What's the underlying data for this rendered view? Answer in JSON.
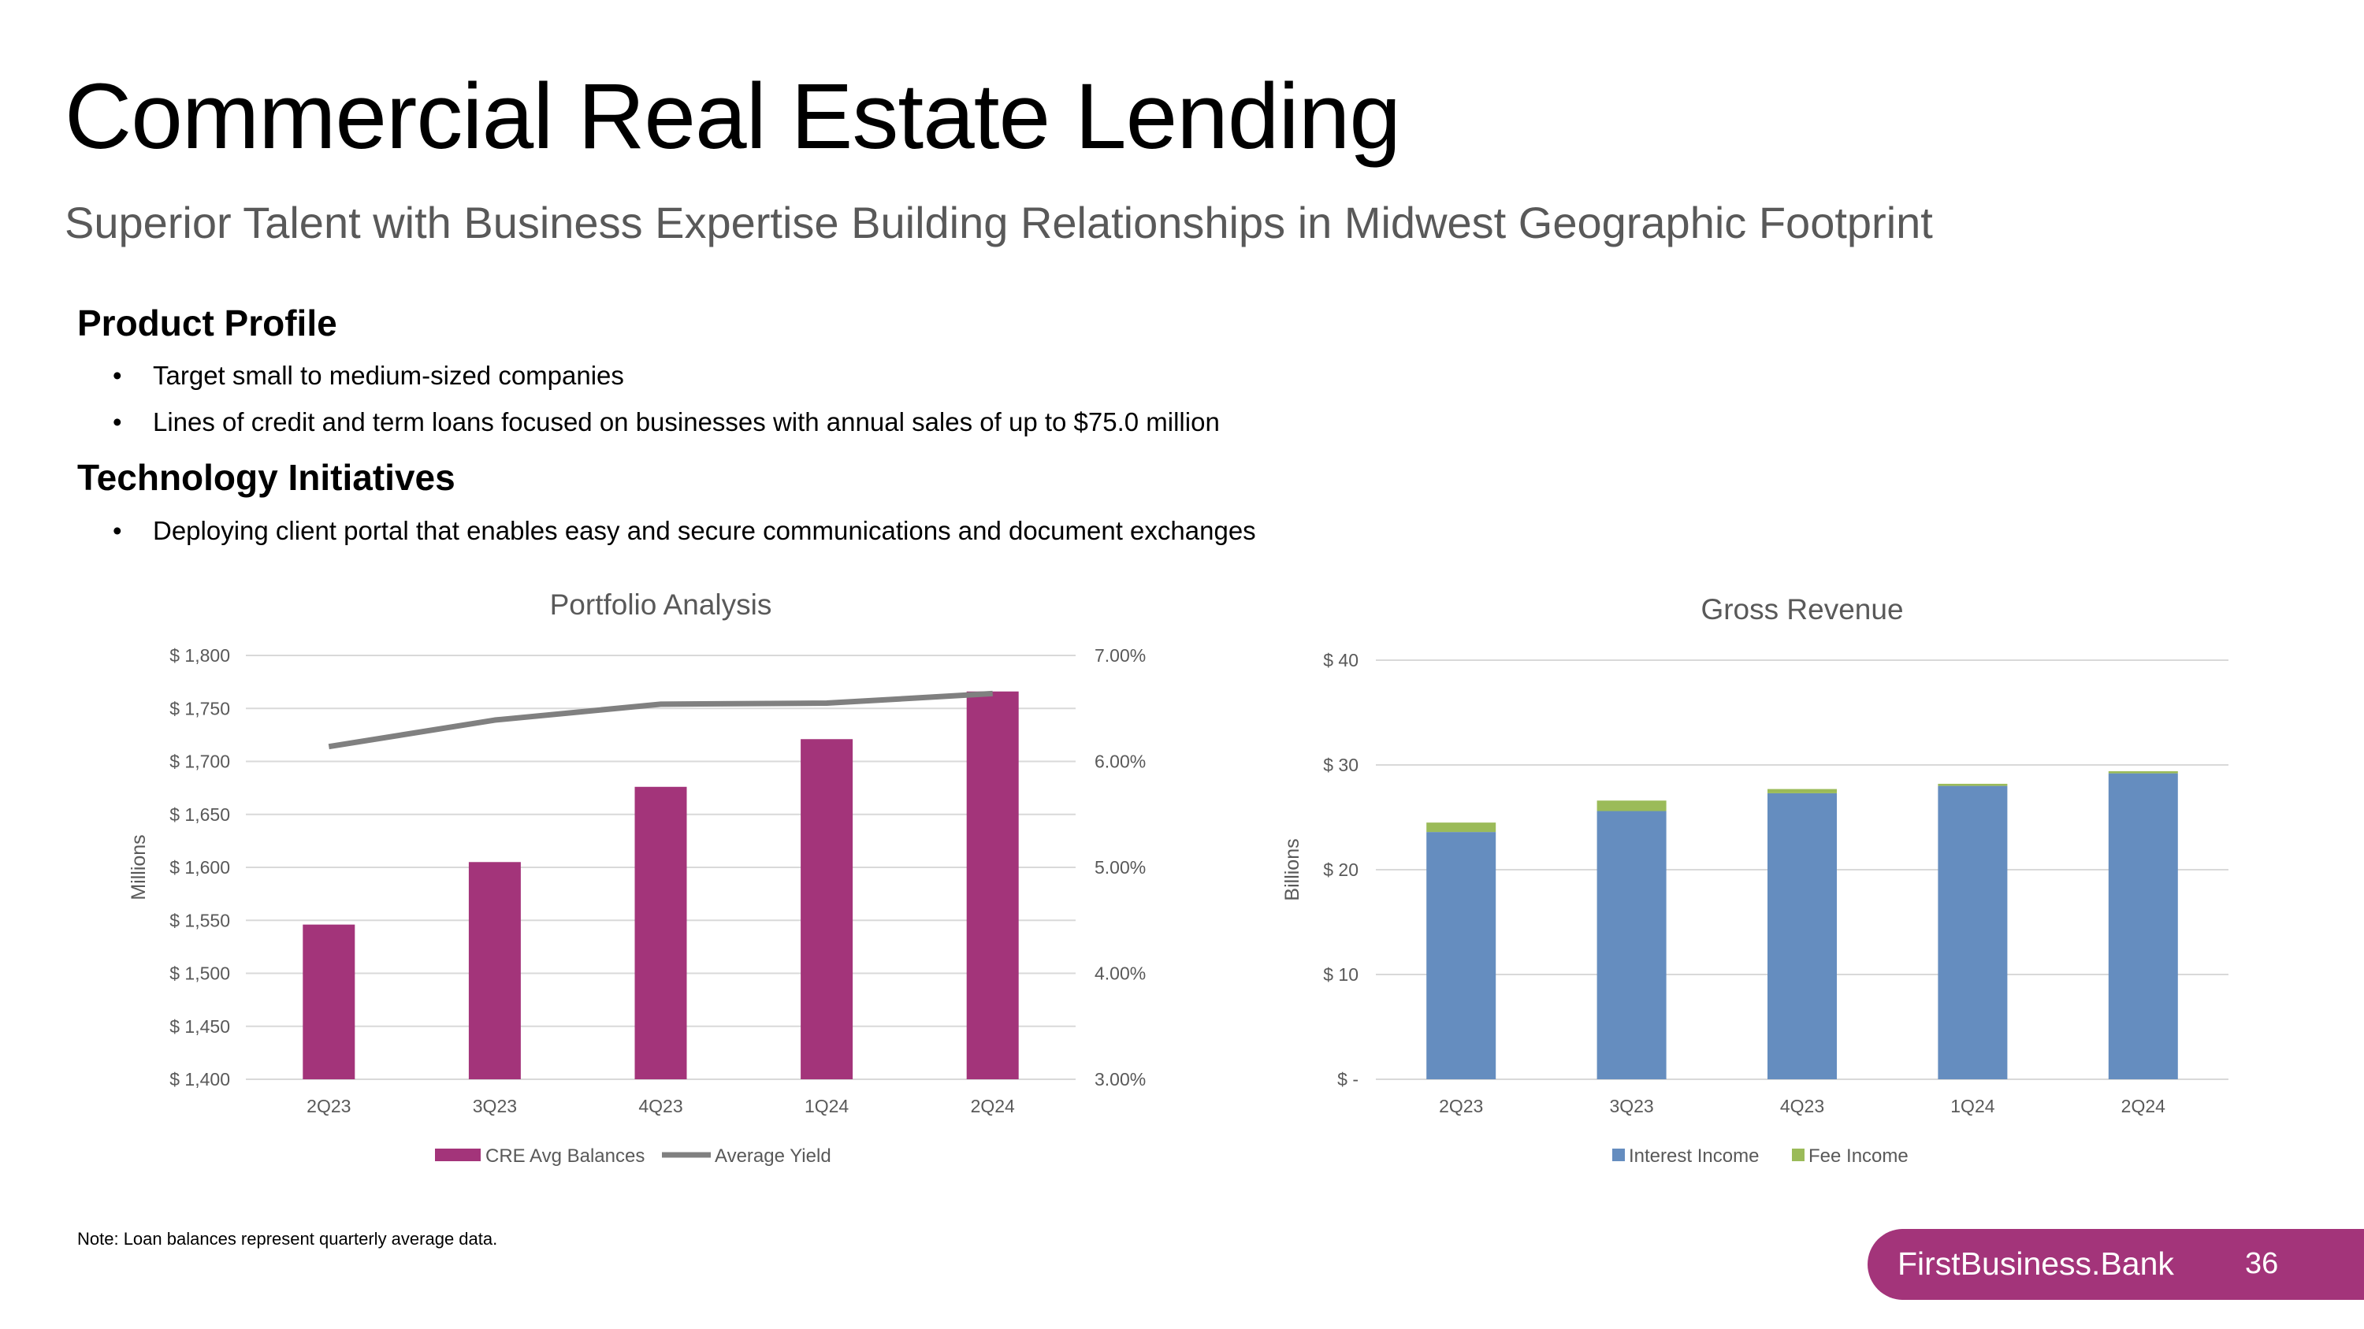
{
  "header": {
    "title": "Commercial Real Estate Lending",
    "subtitle": "Superior Talent with Business Expertise Building Relationships in Midwest Geographic Footprint"
  },
  "sections": [
    {
      "heading": "Product Profile",
      "bullets": [
        "Target small to medium-sized companies",
        "Lines of credit and term loans focused on businesses with annual sales of up to $75.0 million"
      ]
    },
    {
      "heading": "Technology Initiatives",
      "bullets": [
        "Deploying client portal that enables easy and secure communications and document exchanges"
      ]
    }
  ],
  "note": "Note: Loan balances represent quarterly average data.",
  "footer": {
    "brand": "FirstBusiness.Bank",
    "page": "36",
    "color": "#a3347a"
  },
  "chart_data": [
    {
      "type": "bar",
      "title": "Portfolio Analysis",
      "ylabel": "Millions",
      "categories": [
        "2Q23",
        "3Q23",
        "4Q23",
        "1Q24",
        "2Q24"
      ],
      "ylim": [
        1400,
        1800
      ],
      "yticks": [
        1400,
        1450,
        1500,
        1550,
        1600,
        1650,
        1700,
        1750,
        1800
      ],
      "ytick_labels": [
        "$ 1,400",
        "$ 1,450",
        "$ 1,500",
        "$ 1,550",
        "$ 1,600",
        "$ 1,650",
        "$ 1,700",
        "$ 1,750",
        "$ 1,800"
      ],
      "y2lim": [
        3.0,
        7.0
      ],
      "y2ticks": [
        3.0,
        4.0,
        5.0,
        6.0,
        7.0
      ],
      "y2tick_labels": [
        "3.00%",
        "4.00%",
        "5.00%",
        "6.00%",
        "7.00%"
      ],
      "series": [
        {
          "name": "CRE Avg Balances",
          "type": "bar",
          "axis": "left",
          "color": "#a3347a",
          "values": [
            1546,
            1605,
            1676,
            1721,
            1766
          ]
        },
        {
          "name": "Average Yield",
          "type": "line",
          "axis": "right",
          "color": "#808080",
          "values": [
            6.14,
            6.39,
            6.54,
            6.55,
            6.64
          ]
        }
      ],
      "grid": true,
      "legend": "bottom"
    },
    {
      "type": "bar",
      "stacked": true,
      "title": "Gross Revenue",
      "ylabel": "Billions",
      "categories": [
        "2Q23",
        "3Q23",
        "4Q23",
        "1Q24",
        "2Q24"
      ],
      "ylim": [
        0,
        40
      ],
      "yticks": [
        0,
        10,
        20,
        30,
        40
      ],
      "ytick_labels": [
        "$ -",
        "$ 10",
        "$ 20",
        "$ 30",
        "$ 40"
      ],
      "series": [
        {
          "name": "Interest Income",
          "color": "#658dbf",
          "values": [
            23.6,
            25.6,
            27.3,
            28.0,
            29.2
          ]
        },
        {
          "name": "Fee Income",
          "color": "#9bbb59",
          "values": [
            0.9,
            1.0,
            0.4,
            0.2,
            0.2
          ]
        }
      ],
      "grid": true,
      "legend": "bottom"
    }
  ]
}
